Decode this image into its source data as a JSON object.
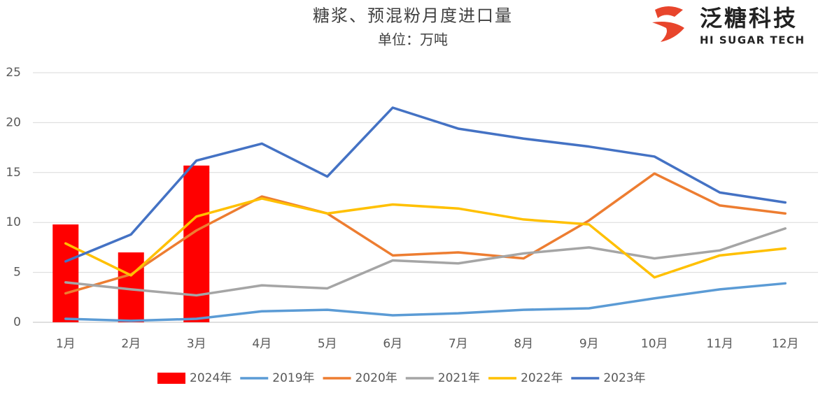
{
  "chart_data": {
    "type": "line",
    "title": "糖浆、预混粉月度进口量",
    "subtitle": "单位：万吨",
    "logo": {
      "name": "泛糖科技",
      "tagline": "HI SUGAR TECH"
    },
    "categories": [
      "1月",
      "2月",
      "3月",
      "4月",
      "5月",
      "6月",
      "7月",
      "8月",
      "9月",
      "10月",
      "11月",
      "12月"
    ],
    "series": [
      {
        "name": "2024年",
        "type": "bar",
        "color": "#ff0000",
        "values": [
          9.8,
          7.0,
          15.7,
          null,
          null,
          null,
          null,
          null,
          null,
          null,
          null,
          null
        ]
      },
      {
        "name": "2019年",
        "color": "#5b9bd5",
        "values": [
          0.35,
          0.15,
          0.35,
          1.1,
          1.25,
          0.7,
          0.9,
          1.25,
          1.4,
          2.4,
          3.3,
          3.9
        ]
      },
      {
        "name": "2020年",
        "color": "#ed7d31",
        "values": [
          2.9,
          4.8,
          9.2,
          12.6,
          10.9,
          6.7,
          7.0,
          6.4,
          10.2,
          14.9,
          11.7,
          10.9
        ]
      },
      {
        "name": "2021年",
        "color": "#a5a5a5",
        "values": [
          4.0,
          3.3,
          2.7,
          3.7,
          3.4,
          6.2,
          5.9,
          6.9,
          7.5,
          6.4,
          7.2,
          9.4
        ]
      },
      {
        "name": "2022年",
        "color": "#ffc000",
        "values": [
          7.9,
          4.7,
          10.6,
          12.4,
          10.9,
          11.8,
          11.4,
          10.3,
          9.8,
          4.5,
          6.7,
          7.4
        ]
      },
      {
        "name": "2023年",
        "color": "#4472c4",
        "values": [
          6.1,
          8.8,
          16.2,
          17.9,
          14.6,
          21.5,
          19.4,
          18.4,
          17.6,
          16.6,
          13.0,
          12.0
        ]
      }
    ],
    "ylim": [
      0,
      25
    ],
    "yticks": [
      0,
      5,
      10,
      15,
      20,
      25
    ],
    "grid": true,
    "legend": "bottom"
  }
}
